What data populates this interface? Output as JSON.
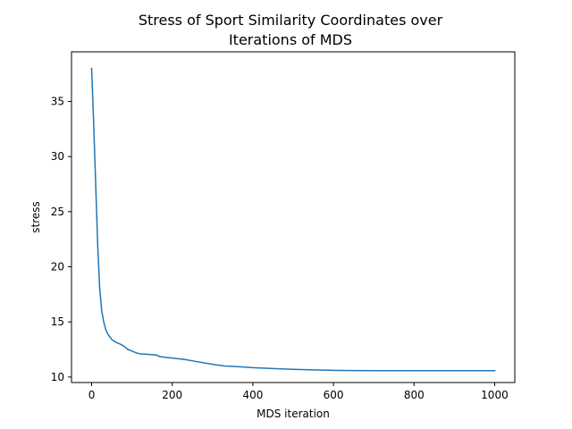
{
  "chart_data": {
    "type": "line",
    "title_lines": [
      "Stress of Sport Similarity Coordinates over",
      "Iterations of MDS"
    ],
    "xlabel": "MDS iteration",
    "ylabel": "stress",
    "xlim": [
      -50,
      1050
    ],
    "ylim": [
      9.5,
      39.5
    ],
    "xticks": [
      0,
      200,
      400,
      600,
      800,
      1000
    ],
    "yticks": [
      10,
      15,
      20,
      25,
      30,
      35
    ],
    "grid": false,
    "legend": "none",
    "line_color": "#1f77b4",
    "series": [
      {
        "x": [
          0,
          5,
          10,
          15,
          20,
          25,
          30,
          35,
          40,
          50,
          60,
          70,
          80,
          90,
          100,
          110,
          120,
          140,
          160,
          170,
          180,
          200,
          230,
          260,
          300,
          330,
          360,
          400,
          450,
          500,
          550,
          600,
          650,
          700,
          800,
          900,
          1000
        ],
        "y": [
          38.0,
          33.0,
          27.5,
          22.0,
          18.0,
          16.0,
          15.0,
          14.3,
          13.9,
          13.4,
          13.15,
          13.0,
          12.8,
          12.5,
          12.35,
          12.2,
          12.1,
          12.05,
          12.0,
          11.85,
          11.8,
          11.72,
          11.6,
          11.4,
          11.15,
          11.0,
          10.95,
          10.85,
          10.77,
          10.7,
          10.65,
          10.6,
          10.58,
          10.57,
          10.57,
          10.57,
          10.57
        ]
      }
    ]
  }
}
